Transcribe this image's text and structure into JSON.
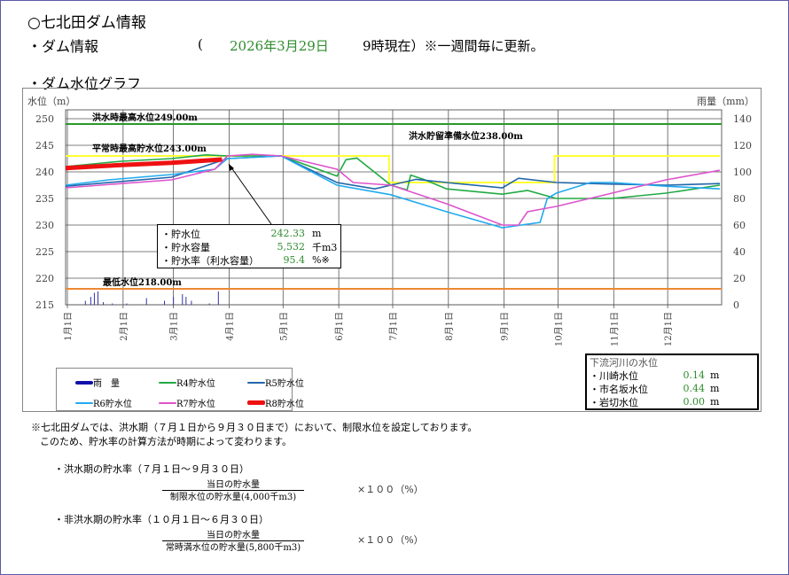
{
  "header": {
    "title": "○七北田ダム情報",
    "info_label": "・ダム情報",
    "open_paren": "(",
    "date": "2026年3月29日",
    "time_suffix": "9時現在）※一週間毎に更新。",
    "graph_label": "・ダム水位グラフ"
  },
  "colors": {
    "flood_max": "#2a9a2a",
    "normal_max": "#ffff33",
    "min": "#ee8833",
    "rain": "#3333aa",
    "R4": "#22aa44",
    "R5": "#2266aa",
    "R6": "#22aaee",
    "R7": "#dd55cc",
    "R8": "#ee1111",
    "value_green": "#2e8b2e"
  },
  "chart_data": {
    "type": "line",
    "ylabel_left": "水位（m）",
    "ylabel_right": "雨量（mm）",
    "ylim_left": [
      215,
      250
    ],
    "ylim_right": [
      0,
      140
    ],
    "yticks_left": [
      "250",
      "245",
      "240",
      "235",
      "230",
      "225",
      "220",
      "215"
    ],
    "yticks_right": [
      "140",
      "120",
      "100",
      "80",
      "60",
      "40",
      "20",
      "0"
    ],
    "xticks": [
      "1月1日",
      "2月1日",
      "3月1日",
      "4月1日",
      "5月1日",
      "6月1日",
      "7月1日",
      "8月1日",
      "9月1日",
      "10月1日",
      "11月1日",
      "12月1日"
    ],
    "grid": true,
    "reference_lines": [
      {
        "label": "洪水時最高水位249.00m",
        "value": 249.0
      },
      {
        "label": "平常時最高貯水位243.00m",
        "value": 243.0
      },
      {
        "label": "洪水貯留準備水位238.00m",
        "value": 238.0
      },
      {
        "label": "最低水位218.00m",
        "value": 218.0
      }
    ],
    "limit_level": [
      [
        "01-01",
        243
      ],
      [
        "06-30",
        243
      ],
      [
        "06-30",
        238
      ],
      [
        "09-30",
        238
      ],
      [
        "09-30",
        243
      ],
      [
        "12-31",
        243
      ]
    ],
    "rain": [
      [
        "01-12",
        3
      ],
      [
        "01-15",
        6
      ],
      [
        "01-17",
        9
      ],
      [
        "01-19",
        10
      ],
      [
        "01-22",
        2
      ],
      [
        "01-27",
        1
      ],
      [
        "02-04",
        1
      ],
      [
        "02-15",
        5
      ],
      [
        "02-25",
        3
      ],
      [
        "03-02",
        6
      ],
      [
        "03-07",
        8
      ],
      [
        "03-09",
        6
      ],
      [
        "03-12",
        3
      ],
      [
        "03-22",
        1
      ],
      [
        "03-27",
        10
      ]
    ],
    "series": [
      {
        "name": "R4貯水位",
        "key": "R4",
        "points": [
          [
            "01-01",
            241
          ],
          [
            "02-01",
            242
          ],
          [
            "03-01",
            242.5
          ],
          [
            "03-20",
            243.2
          ],
          [
            "04-01",
            243
          ],
          [
            "05-01",
            243
          ],
          [
            "06-01",
            239.2
          ],
          [
            "06-06",
            242.3
          ],
          [
            "06-12",
            242.6
          ],
          [
            "07-01",
            237.5
          ],
          [
            "07-10",
            236.6
          ],
          [
            "07-12",
            239.4
          ],
          [
            "07-20",
            238.5
          ],
          [
            "08-01",
            236.8
          ],
          [
            "09-01",
            235.8
          ],
          [
            "09-15",
            236.5
          ],
          [
            "10-01",
            235
          ],
          [
            "11-01",
            235
          ],
          [
            "12-01",
            236
          ],
          [
            "12-31",
            237.5
          ]
        ]
      },
      {
        "name": "R5貯水位",
        "key": "R5",
        "points": [
          [
            "01-01",
            237.3
          ],
          [
            "03-01",
            239
          ],
          [
            "04-01",
            242.5
          ],
          [
            "05-01",
            243
          ],
          [
            "06-01",
            238
          ],
          [
            "06-22",
            236.8
          ],
          [
            "07-01",
            237.5
          ],
          [
            "07-15",
            238.6
          ],
          [
            "08-01",
            238
          ],
          [
            "09-01",
            237
          ],
          [
            "09-10",
            238.8
          ],
          [
            "10-01",
            238
          ],
          [
            "11-01",
            237.7
          ],
          [
            "12-01",
            237.5
          ],
          [
            "12-31",
            237.8
          ]
        ]
      },
      {
        "name": "R6貯水位",
        "key": "R6",
        "points": [
          [
            "01-01",
            237.5
          ],
          [
            "01-25",
            238.5
          ],
          [
            "03-01",
            239.5
          ],
          [
            "03-25",
            240.5
          ],
          [
            "04-01",
            242.5
          ],
          [
            "05-01",
            243
          ],
          [
            "06-01",
            237.5
          ],
          [
            "07-01",
            235.7
          ],
          [
            "08-01",
            232.5
          ],
          [
            "09-01",
            229.5
          ],
          [
            "09-22",
            230.5
          ],
          [
            "09-26",
            235
          ],
          [
            "10-01",
            236
          ],
          [
            "10-20",
            238
          ],
          [
            "11-01",
            238
          ],
          [
            "12-01",
            237.3
          ],
          [
            "12-31",
            236.8
          ]
        ]
      },
      {
        "name": "R7貯水位",
        "key": "R7",
        "points": [
          [
            "01-01",
            237
          ],
          [
            "02-01",
            237.8
          ],
          [
            "03-01",
            238.5
          ],
          [
            "03-25",
            240.5
          ],
          [
            "04-01",
            243
          ],
          [
            "04-15",
            243.3
          ],
          [
            "05-01",
            243
          ],
          [
            "06-01",
            240.5
          ],
          [
            "06-10",
            238
          ],
          [
            "07-01",
            237.5
          ],
          [
            "08-01",
            234
          ],
          [
            "09-01",
            230
          ],
          [
            "09-10",
            230
          ],
          [
            "09-15",
            232.5
          ],
          [
            "10-01",
            233.5
          ],
          [
            "11-01",
            236
          ],
          [
            "12-01",
            238.5
          ],
          [
            "12-31",
            240.3
          ]
        ]
      },
      {
        "name": "R8貯水位",
        "key": "R8",
        "points": [
          [
            "01-01",
            240.7
          ],
          [
            "02-01",
            241.3
          ],
          [
            "03-01",
            241.7
          ],
          [
            "03-29",
            242.33
          ]
        ]
      }
    ]
  },
  "legend": {
    "rain": "雨　量",
    "R4": "R4貯水位",
    "R5": "R5貯水位",
    "R6": "R6貯水位",
    "R7": "R7貯水位",
    "R8": "R8貯水位"
  },
  "callout": {
    "rows": [
      {
        "label": "・貯水位",
        "value": "242.33",
        "unit": "m"
      },
      {
        "label": "・貯水容量",
        "value": "5,532",
        "unit": "千m3"
      },
      {
        "label": "・貯水率（利水容量）",
        "value": "95.4",
        "unit": "%※"
      }
    ]
  },
  "downstream": {
    "title": "下流河川の水位",
    "rows": [
      {
        "label": "・川崎水位",
        "value": "0.14",
        "unit": "m"
      },
      {
        "label": "・市名坂水位",
        "value": "0.44",
        "unit": "m"
      },
      {
        "label": "・岩切水位",
        "value": "0.00",
        "unit": "m"
      }
    ]
  },
  "notes": {
    "line1": "※七北田ダムでは、洪水期（７月１日から９月３０日まで）において、制限水位を設定しております。",
    "line2": "このため、貯水率の計算方法が時期によって変わります。",
    "flood_title": "・洪水期の貯水率（７月１日～９月３０日）",
    "flood_num": "当日の貯水量",
    "flood_den": "制限水位の貯水量(4,000千m3)",
    "times100": "×１００（%）",
    "nonflood_title": "・非洪水期の貯水率（１０月１日～６月３０日）",
    "nonflood_num": "当日の貯水量",
    "nonflood_den": "常時満水位の貯水量(5,800千m3)"
  }
}
